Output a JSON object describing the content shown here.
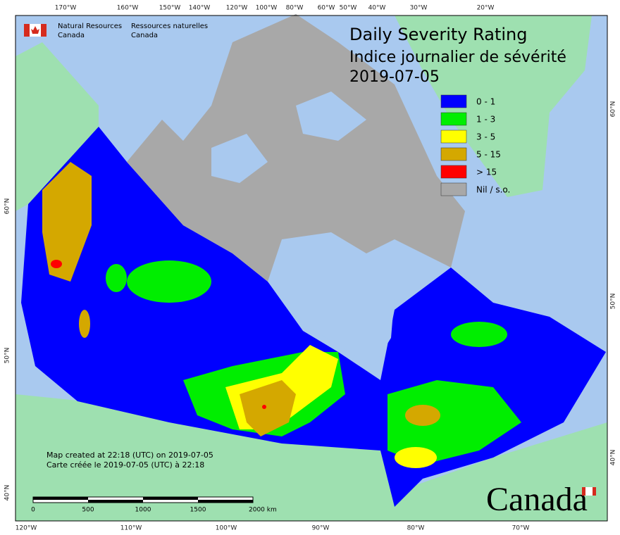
{
  "header": {
    "agency_en": [
      "Natural Resources",
      "Canada"
    ],
    "agency_fr": [
      "Ressources naturelles",
      "Canada"
    ],
    "title": [
      "Daily Severity Rating",
      "Indice journalier de sévérité",
      "2019-07-05"
    ]
  },
  "legend": {
    "items": [
      {
        "label": "0 - 1",
        "color": "#0000ff"
      },
      {
        "label": "1 - 3",
        "color": "#00ee00"
      },
      {
        "label": "3 - 5",
        "color": "#ffff00"
      },
      {
        "label": "5 - 15",
        "color": "#d4a800"
      },
      {
        "label": "> 15",
        "color": "#ff0000"
      },
      {
        "label": "Nil / s.o.",
        "color": "#a8a8a8"
      }
    ]
  },
  "graticule": {
    "top": [
      "170°W",
      "160°W",
      "150°W",
      "140°W",
      "120°W",
      "100°W",
      "80°W",
      "60°W",
      "50°W",
      "40°W",
      "30°W",
      "20°W"
    ],
    "bottom": [
      "120°W",
      "110°W",
      "100°W",
      "90°W",
      "80°W",
      "70°W"
    ],
    "left": [
      "60°N",
      "50°N",
      "40°N"
    ],
    "right": [
      "60°N",
      "50°N",
      "40°N"
    ]
  },
  "footer": {
    "notes": [
      "Map created at 22:18 (UTC) on 2019-07-05",
      "Carte créée le 2019-07-05 (UTC) à 22:18"
    ],
    "scale": [
      "0",
      "500",
      "1000",
      "1500",
      "2000 km"
    ],
    "wordmark": "Canada"
  }
}
